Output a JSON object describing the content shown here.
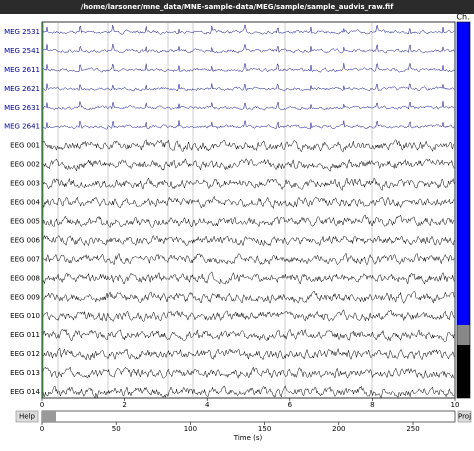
{
  "window": {
    "title": "/home/larsoner/mne_data/MNE-sample-data/MEG/sample/sample_audvis_raw.fif"
  },
  "browser": {
    "channel_header": "Ch.",
    "channels": [
      "MEG 2531",
      "MEG 2541",
      "MEG 2611",
      "MEG 2621",
      "MEG 2631",
      "MEG 2641",
      "EEG 001",
      "EEG 002",
      "EEG 003",
      "EEG 004",
      "EEG 005",
      "EEG 006",
      "EEG 007",
      "EEG 008",
      "EEG 009",
      "EEG 010",
      "EEG 011",
      "EEG 012",
      "EEG 013",
      "EEG 014"
    ],
    "time_ticks": [
      0,
      2,
      4,
      6,
      8,
      10
    ],
    "scroll_ticks": [
      0,
      50,
      100,
      150,
      200,
      250
    ],
    "xlabel": "Time (s)",
    "help_button": "Help",
    "proj_button": "Proj"
  }
}
